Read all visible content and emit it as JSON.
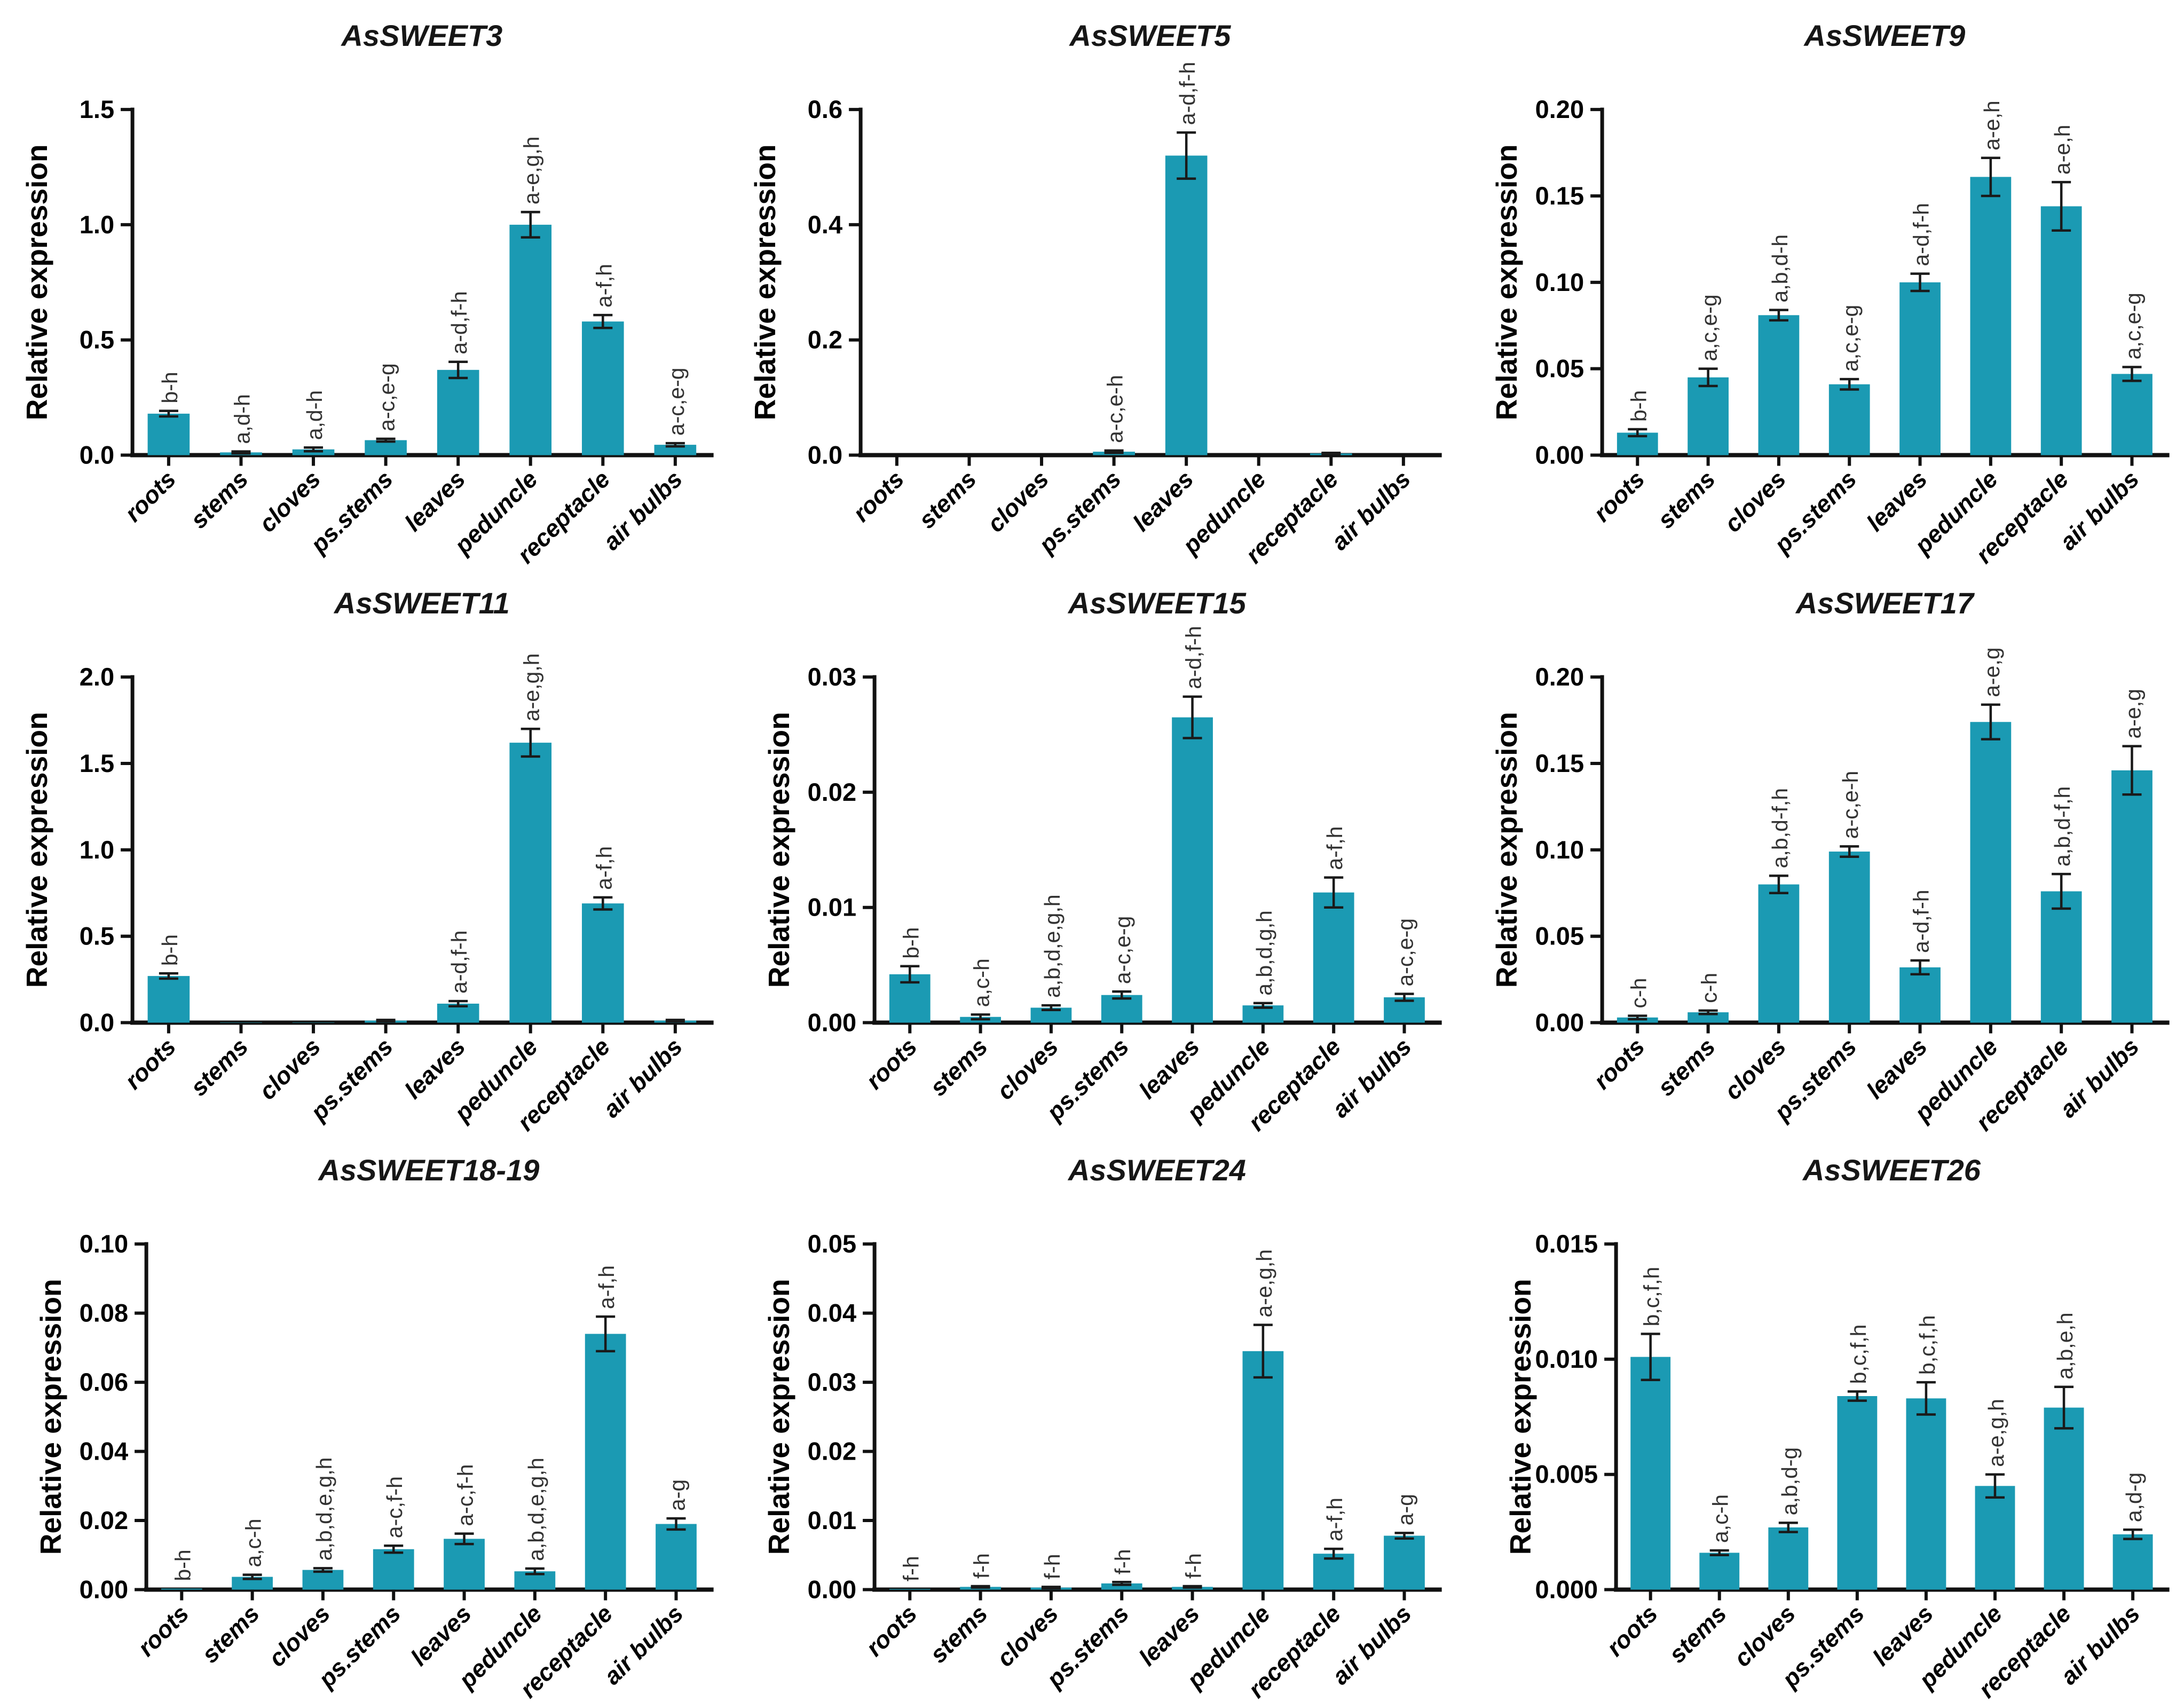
{
  "figure": {
    "description": "3x3 grid of bar charts of AsSWEET gene relative expression across garlic tissues",
    "bar_color": "#1b9ab3",
    "axis_color": "#111111",
    "error_bar_color": "#1a1a1a",
    "sig_label_color": "#333333",
    "ylabel": "Relative expression",
    "categories": [
      "roots",
      "stems",
      "cloves",
      "ps.stems",
      "leaves",
      "peduncle",
      "receptacle",
      "air bulbs"
    ]
  },
  "chart_data": [
    {
      "type": "bar",
      "title": "AsSWEET3",
      "ylabel": "Relative expression",
      "xlabel": "",
      "grid": false,
      "legend": null,
      "ylim": [
        0,
        1.5
      ],
      "tick_values": [
        0,
        0.5,
        1.0,
        1.5
      ],
      "tick_labels": [
        "0.0",
        "0.5",
        "1.0",
        "1.5"
      ],
      "categories": [
        "roots",
        "stems",
        "cloves",
        "ps.stems",
        "leaves",
        "peduncle",
        "receptacle",
        "air bulbs"
      ],
      "values": [
        0.18,
        0.012,
        0.025,
        0.065,
        0.37,
        1.0,
        0.58,
        0.045
      ],
      "errors": [
        0.012,
        0.004,
        0.008,
        0.006,
        0.035,
        0.055,
        0.028,
        0.007
      ],
      "sig_labels": [
        "b-h",
        "a,d-h",
        "a,d-h",
        "a-c,e-g",
        "a-d,f-h",
        "a-e,g,h",
        "a-f,h",
        "a-c,e-g"
      ]
    },
    {
      "type": "bar",
      "title": "AsSWEET5",
      "ylabel": "Relative expression",
      "xlabel": "",
      "grid": false,
      "legend": null,
      "ylim": [
        0,
        0.6
      ],
      "tick_values": [
        0,
        0.2,
        0.4,
        0.6
      ],
      "tick_labels": [
        "0.0",
        "0.2",
        "0.4",
        "0.6"
      ],
      "categories": [
        "roots",
        "stems",
        "cloves",
        "ps.stems",
        "leaves",
        "peduncle",
        "receptacle",
        "air bulbs"
      ],
      "values": [
        0,
        0,
        0,
        0.006,
        0.52,
        0,
        0.003,
        0
      ],
      "errors": [
        0,
        0,
        0,
        0.002,
        0.04,
        0,
        0.001,
        0
      ],
      "sig_labels": [
        "",
        "",
        "",
        "a-c,e-h",
        "a-d,f-h",
        "",
        "",
        ""
      ]
    },
    {
      "type": "bar",
      "title": "AsSWEET9",
      "ylabel": "Relative expression",
      "xlabel": "",
      "grid": false,
      "legend": null,
      "ylim": [
        0,
        0.2
      ],
      "tick_values": [
        0,
        0.05,
        0.1,
        0.15,
        0.2
      ],
      "tick_labels": [
        "0.00",
        "0.05",
        "0.10",
        "0.15",
        "0.20"
      ],
      "categories": [
        "roots",
        "stems",
        "cloves",
        "ps.stems",
        "leaves",
        "peduncle",
        "receptacle",
        "air bulbs"
      ],
      "values": [
        0.013,
        0.045,
        0.081,
        0.041,
        0.1,
        0.161,
        0.144,
        0.047
      ],
      "errors": [
        0.002,
        0.005,
        0.003,
        0.003,
        0.005,
        0.011,
        0.014,
        0.004
      ],
      "sig_labels": [
        "b-h",
        "a,c,e-g",
        "a,b,d-h",
        "a,c,e-g",
        "a-d,f-h",
        "a-e,h",
        "a-e,h",
        "a,c,e-g"
      ]
    },
    {
      "type": "bar",
      "title": "AsSWEET11",
      "ylabel": "Relative expression",
      "xlabel": "",
      "grid": false,
      "legend": null,
      "ylim": [
        0,
        2.0
      ],
      "tick_values": [
        0,
        0.5,
        1.0,
        1.5,
        2.0
      ],
      "tick_labels": [
        "0.0",
        "0.5",
        "1.0",
        "1.5",
        "2.0"
      ],
      "categories": [
        "roots",
        "stems",
        "cloves",
        "ps.stems",
        "leaves",
        "peduncle",
        "receptacle",
        "air bulbs"
      ],
      "values": [
        0.27,
        0.002,
        0.002,
        0.012,
        0.11,
        1.62,
        0.69,
        0.012
      ],
      "errors": [
        0.015,
        0,
        0,
        0.004,
        0.015,
        0.08,
        0.035,
        0.004
      ],
      "sig_labels": [
        "b-h",
        "",
        "",
        "",
        "a-d,f-h",
        "a-e,g,h",
        "a-f,h",
        ""
      ]
    },
    {
      "type": "bar",
      "title": "AsSWEET15",
      "ylabel": "Relative expression",
      "xlabel": "",
      "grid": false,
      "legend": null,
      "ylim": [
        0,
        0.03
      ],
      "tick_values": [
        0,
        0.01,
        0.02,
        0.03
      ],
      "tick_labels": [
        "0.00",
        "0.01",
        "0.02",
        "0.03"
      ],
      "categories": [
        "roots",
        "stems",
        "cloves",
        "ps.stems",
        "leaves",
        "peduncle",
        "receptacle",
        "air bulbs"
      ],
      "values": [
        0.0042,
        0.0005,
        0.0013,
        0.0024,
        0.0265,
        0.0015,
        0.0113,
        0.0022
      ],
      "errors": [
        0.0007,
        0.0002,
        0.0002,
        0.0003,
        0.0018,
        0.0002,
        0.0013,
        0.0003
      ],
      "sig_labels": [
        "b-h",
        "a,c-h",
        "a,b,d,e,g,h",
        "a-c,e-g",
        "a-d,f-h",
        "a,b,d,g,h",
        "a-f,h",
        "a-c,e-g"
      ]
    },
    {
      "type": "bar",
      "title": "AsSWEET17",
      "ylabel": "Relative expression",
      "xlabel": "",
      "grid": false,
      "legend": null,
      "ylim": [
        0,
        0.2
      ],
      "tick_values": [
        0,
        0.05,
        0.1,
        0.15,
        0.2
      ],
      "tick_labels": [
        "0.00",
        "0.05",
        "0.10",
        "0.15",
        "0.20"
      ],
      "categories": [
        "roots",
        "stems",
        "cloves",
        "ps.stems",
        "leaves",
        "peduncle",
        "receptacle",
        "air bulbs"
      ],
      "values": [
        0.003,
        0.006,
        0.08,
        0.099,
        0.032,
        0.174,
        0.076,
        0.146
      ],
      "errors": [
        0.001,
        0.001,
        0.005,
        0.003,
        0.004,
        0.01,
        0.01,
        0.014
      ],
      "sig_labels": [
        "c-h",
        "c-h",
        "a,b,d-f,h",
        "a-c,e-h",
        "a-d,f-h",
        "a-e,g",
        "a,b,d-f,h",
        "a-e,g"
      ]
    },
    {
      "type": "bar",
      "title": "AsSWEET18-19",
      "ylabel": "Relative expression",
      "xlabel": "",
      "grid": false,
      "legend": null,
      "ylim": [
        0,
        0.1
      ],
      "tick_values": [
        0,
        0.02,
        0.04,
        0.06,
        0.08,
        0.1
      ],
      "tick_labels": [
        "0.00",
        "0.02",
        "0.04",
        "0.06",
        "0.08",
        "0.10"
      ],
      "categories": [
        "roots",
        "stems",
        "cloves",
        "ps.stems",
        "leaves",
        "peduncle",
        "receptacle",
        "air bulbs"
      ],
      "values": [
        0.0003,
        0.0037,
        0.0057,
        0.0117,
        0.0147,
        0.0053,
        0.074,
        0.019
      ],
      "errors": [
        0,
        0.0006,
        0.0005,
        0.001,
        0.0015,
        0.0008,
        0.005,
        0.0016
      ],
      "sig_labels": [
        "b-h",
        "a,c-h",
        "a,b,d,e,g,h",
        "a-c,f-h",
        "a-c,f-h",
        "a,b,d,e,g,h",
        "a-f,h",
        "a-g"
      ]
    },
    {
      "type": "bar",
      "title": "AsSWEET24",
      "ylabel": "Relative expression",
      "xlabel": "",
      "grid": false,
      "legend": null,
      "ylim": [
        0,
        0.05
      ],
      "tick_values": [
        0,
        0.01,
        0.02,
        0.03,
        0.04,
        0.05
      ],
      "tick_labels": [
        "0.00",
        "0.01",
        "0.02",
        "0.03",
        "0.04",
        "0.05"
      ],
      "categories": [
        "roots",
        "stems",
        "cloves",
        "ps.stems",
        "leaves",
        "peduncle",
        "receptacle",
        "air bulbs"
      ],
      "values": [
        0.0001,
        0.0004,
        0.0003,
        0.0009,
        0.0004,
        0.0345,
        0.0052,
        0.0078
      ],
      "errors": [
        0,
        0.0001,
        0.0001,
        0.0002,
        0.0001,
        0.0038,
        0.0007,
        0.0004
      ],
      "sig_labels": [
        "f-h",
        "f-h",
        "f-h",
        "f-h",
        "f-h",
        "a-e,g,h",
        "a-f,h",
        "a-g"
      ]
    },
    {
      "type": "bar",
      "title": "AsSWEET26",
      "ylabel": "Relative expression",
      "xlabel": "",
      "grid": false,
      "legend": null,
      "ylim": [
        0,
        0.015
      ],
      "tick_values": [
        0,
        0.005,
        0.01,
        0.015
      ],
      "tick_labels": [
        "0.000",
        "0.005",
        "0.010",
        "0.015"
      ],
      "categories": [
        "roots",
        "stems",
        "cloves",
        "ps.stems",
        "leaves",
        "peduncle",
        "receptacle",
        "air bulbs"
      ],
      "values": [
        0.0101,
        0.0016,
        0.0027,
        0.0084,
        0.0083,
        0.0045,
        0.0079,
        0.0024
      ],
      "errors": [
        0.001,
        0.0001,
        0.0002,
        0.0002,
        0.0007,
        0.0005,
        0.0009,
        0.0002
      ],
      "sig_labels": [
        "b,c,f,h",
        "a,c-h",
        "a,b,d-g",
        "b,c,f,h",
        "b,c,f,h",
        "a-e,g,h",
        "a,b,e,h",
        "a,d-g"
      ]
    }
  ]
}
